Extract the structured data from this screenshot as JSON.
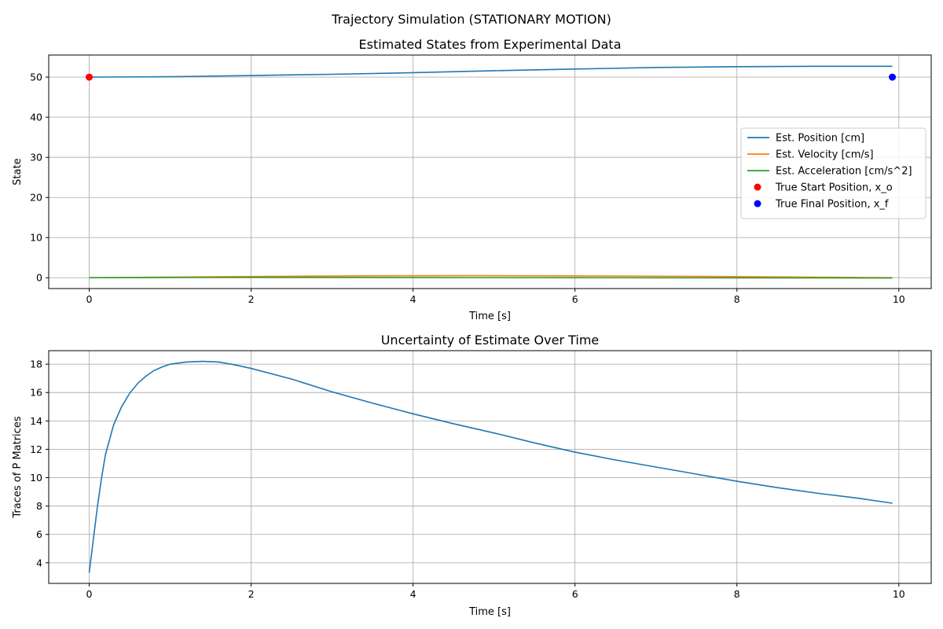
{
  "figure": {
    "suptitle": "Trajectory Simulation (STATIONARY MOTION)"
  },
  "colors": {
    "position": "#1f77b4",
    "velocity": "#ff7f0e",
    "acceleration": "#2ca02c",
    "start": "#ff0000",
    "final": "#0000ff"
  },
  "chart_data": [
    {
      "type": "line",
      "title": "Estimated States from Experimental Data",
      "xlabel": "Time [s]",
      "ylabel": "State",
      "xlim": [
        -0.5,
        10.4
      ],
      "ylim": [
        -2.7,
        55.5
      ],
      "xticks": [
        0,
        2,
        4,
        6,
        8,
        10
      ],
      "yticks": [
        0,
        10,
        20,
        30,
        40,
        50
      ],
      "grid": true,
      "legend_position": "center-right",
      "series": [
        {
          "name": "Est. Position [cm]",
          "color": "#1f77b4",
          "x": [
            0,
            1,
            2,
            3,
            4,
            5,
            6,
            7,
            8,
            9,
            9.92
          ],
          "y": [
            50.0,
            50.1,
            50.4,
            50.7,
            51.1,
            51.6,
            52.0,
            52.4,
            52.6,
            52.7,
            52.7
          ]
        },
        {
          "name": "Est. Velocity [cm/s]",
          "color": "#ff7f0e",
          "x": [
            0,
            1,
            2,
            3,
            4,
            4.7,
            6,
            7,
            8,
            9,
            9.92
          ],
          "y": [
            0.0,
            0.15,
            0.3,
            0.42,
            0.5,
            0.52,
            0.45,
            0.38,
            0.28,
            0.12,
            0.0
          ]
        },
        {
          "name": "Est. Acceleration [cm/s^2]",
          "color": "#2ca02c",
          "x": [
            0,
            1,
            2,
            3,
            4,
            5,
            6,
            7,
            8,
            9,
            9.92
          ],
          "y": [
            0.0,
            0.06,
            0.08,
            0.07,
            0.05,
            0.02,
            0.0,
            -0.02,
            -0.04,
            -0.05,
            -0.06
          ]
        }
      ],
      "points": [
        {
          "name": "True Start Position, x_o",
          "color": "#ff0000",
          "x": 0,
          "y": 50
        },
        {
          "name": "True Final Position, x_f",
          "color": "#0000ff",
          "x": 9.92,
          "y": 50
        }
      ]
    },
    {
      "type": "line",
      "title": "Uncertainty of Estimate Over Time",
      "xlabel": "Time [s]",
      "ylabel": "Traces of P Matrices",
      "xlim": [
        -0.5,
        10.4
      ],
      "ylim": [
        2.55,
        18.95
      ],
      "xticks": [
        0,
        2,
        4,
        6,
        8,
        10
      ],
      "yticks": [
        4,
        6,
        8,
        10,
        12,
        14,
        16,
        18
      ],
      "grid": true,
      "series": [
        {
          "name": "",
          "color": "#1f77b4",
          "x": [
            0,
            0.05,
            0.1,
            0.15,
            0.2,
            0.3,
            0.4,
            0.5,
            0.6,
            0.7,
            0.8,
            0.9,
            1.0,
            1.2,
            1.4,
            1.6,
            1.8,
            2.0,
            2.5,
            3.0,
            3.5,
            4.0,
            4.5,
            5.0,
            5.5,
            6.0,
            6.5,
            7.0,
            7.5,
            8.0,
            8.5,
            9.0,
            9.5,
            9.92
          ],
          "y": [
            3.3,
            5.6,
            7.9,
            9.9,
            11.6,
            13.7,
            15.0,
            15.95,
            16.65,
            17.15,
            17.55,
            17.8,
            18.0,
            18.15,
            18.2,
            18.15,
            17.95,
            17.7,
            16.95,
            16.05,
            15.25,
            14.5,
            13.8,
            13.15,
            12.45,
            11.8,
            11.25,
            10.75,
            10.25,
            9.75,
            9.3,
            8.9,
            8.55,
            8.2
          ]
        }
      ]
    }
  ]
}
